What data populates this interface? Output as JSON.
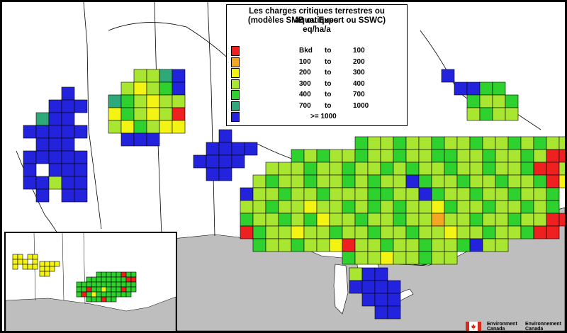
{
  "legend": {
    "title_line1": "Les charges critiques terrestres ou aquatiques",
    "title_line2": "(modèles SMB ou Expert ou SSWC)",
    "title_line3": "eq/ha/a",
    "classes": [
      {
        "from": "Bkd",
        "sep": "to",
        "to": "100",
        "color": "#ee2020"
      },
      {
        "from": "100",
        "sep": "to",
        "to": "200",
        "color": "#f5a623"
      },
      {
        "from": "200",
        "sep": "to",
        "to": "300",
        "color": "#f4f414"
      },
      {
        "from": "300",
        "sep": "to",
        "to": "400",
        "color": "#a8e632"
      },
      {
        "from": "400",
        "sep": "to",
        "to": "700",
        "color": "#2ed12e"
      },
      {
        "from": "700",
        "sep": "to",
        "to": "1000",
        "color": "#2fa87a"
      },
      {
        "from": ">= 1000",
        "sep": "",
        "to": "",
        "color": "#2323dd"
      }
    ]
  },
  "logo": {
    "text_en_1": "Environment",
    "text_en_2": "Canada",
    "text_fr_1": "Environnement",
    "text_fr_2": "Canada",
    "flag_color": "#d52b1e"
  },
  "colors": {
    "land": "#ffffff",
    "us_land": "#bebebe",
    "water": "#ffffff",
    "boundary": "#000000"
  }
}
